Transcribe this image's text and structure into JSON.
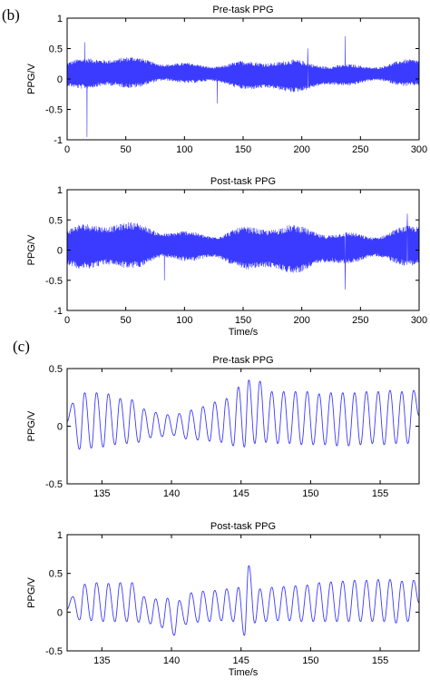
{
  "panel_labels": {
    "b": "(b)",
    "c": "(c)"
  },
  "colors": {
    "trace": "#3b3bff",
    "axes": "#000000"
  },
  "chart_data": [
    {
      "type": "line",
      "panel": "b",
      "title": "Pre-task PPG",
      "xlabel": "",
      "ylabel": "PPG/V",
      "xlim": [
        0,
        300
      ],
      "ylim": [
        -1,
        1
      ],
      "xticks": [
        "0",
        "50",
        "100",
        "150",
        "200",
        "250",
        "300"
      ],
      "yticks": [
        "-1",
        "-0.5",
        "0",
        "0.5",
        "1"
      ],
      "signal": {
        "kind": "dense_ppg",
        "center": 0.08,
        "amplitude": 0.2,
        "spikes": [
          [
            17,
            -0.95
          ],
          [
            15,
            0.6
          ],
          [
            128,
            -0.4
          ],
          [
            205,
            0.5
          ],
          [
            237,
            0.7
          ]
        ]
      },
      "grid": false,
      "legend": "none"
    },
    {
      "type": "line",
      "panel": "b",
      "title": "Post-task PPG",
      "xlabel": "Time/s",
      "ylabel": "PPG/V",
      "xlim": [
        0,
        300
      ],
      "ylim": [
        -1,
        1
      ],
      "xticks": [
        "0",
        "50",
        "100",
        "150",
        "200",
        "250",
        "300"
      ],
      "yticks": [
        "-1",
        "-0.5",
        "0",
        "0.5",
        "1"
      ],
      "signal": {
        "kind": "dense_ppg",
        "center": 0.05,
        "amplitude": 0.3,
        "spikes": [
          [
            83,
            -0.5
          ],
          [
            237,
            -0.65
          ],
          [
            290,
            0.6
          ]
        ]
      },
      "grid": false,
      "legend": "none"
    },
    {
      "type": "line",
      "panel": "c",
      "title": "Pre-task PPG",
      "xlabel": "",
      "ylabel": "PPG/V",
      "xlim": [
        132.5,
        157.8
      ],
      "ylim": [
        -0.5,
        0.5
      ],
      "xticks": [
        "135",
        "140",
        "145",
        "150",
        "155"
      ],
      "yticks": [
        "-0.5",
        "0",
        "0.5"
      ],
      "peaks": [
        [
          132.9,
          0.2
        ],
        [
          133.75,
          0.29
        ],
        [
          134.6,
          0.29
        ],
        [
          135.45,
          0.28
        ],
        [
          136.3,
          0.24
        ],
        [
          137.15,
          0.23
        ],
        [
          138.0,
          0.15
        ],
        [
          138.85,
          0.12
        ],
        [
          139.7,
          0.1
        ],
        [
          140.55,
          0.11
        ],
        [
          141.4,
          0.14
        ],
        [
          142.25,
          0.17
        ],
        [
          143.1,
          0.21
        ],
        [
          143.95,
          0.24
        ],
        [
          144.8,
          0.34
        ],
        [
          145.55,
          0.4
        ],
        [
          146.35,
          0.39
        ],
        [
          147.2,
          0.3
        ],
        [
          148.05,
          0.3
        ],
        [
          148.9,
          0.3
        ],
        [
          149.75,
          0.3
        ],
        [
          150.6,
          0.28
        ],
        [
          151.45,
          0.29
        ],
        [
          152.3,
          0.29
        ],
        [
          153.15,
          0.29
        ],
        [
          154.0,
          0.3
        ],
        [
          154.85,
          0.3
        ],
        [
          155.7,
          0.31
        ],
        [
          156.55,
          0.3
        ],
        [
          157.4,
          0.31
        ]
      ],
      "troughs": [
        [
          133.4,
          -0.2
        ],
        [
          134.25,
          -0.19
        ],
        [
          135.1,
          -0.18
        ],
        [
          135.95,
          -0.16
        ],
        [
          136.8,
          -0.15
        ],
        [
          137.65,
          -0.14
        ],
        [
          138.5,
          -0.1
        ],
        [
          139.35,
          -0.09
        ],
        [
          140.2,
          -0.08
        ],
        [
          141.05,
          -0.11
        ],
        [
          141.9,
          -0.12
        ],
        [
          142.75,
          -0.13
        ],
        [
          143.6,
          -0.14
        ],
        [
          144.45,
          -0.17
        ],
        [
          145.25,
          -0.18
        ],
        [
          146.0,
          -0.15
        ],
        [
          146.8,
          -0.14
        ],
        [
          147.65,
          -0.15
        ],
        [
          148.5,
          -0.15
        ],
        [
          149.35,
          -0.16
        ],
        [
          150.2,
          -0.16
        ],
        [
          151.05,
          -0.16
        ],
        [
          151.9,
          -0.17
        ],
        [
          152.75,
          -0.17
        ],
        [
          153.6,
          -0.16
        ],
        [
          154.45,
          -0.15
        ],
        [
          155.3,
          -0.16
        ],
        [
          156.15,
          -0.15
        ],
        [
          157.0,
          -0.15
        ]
      ],
      "grid": false,
      "legend": "none"
    },
    {
      "type": "line",
      "panel": "c",
      "title": "Post-task PPG",
      "xlabel": "Time/s",
      "ylabel": "PPG/V",
      "xlim": [
        132.5,
        157.8
      ],
      "ylim": [
        -0.5,
        1
      ],
      "xticks": [
        "135",
        "140",
        "145",
        "150",
        "155"
      ],
      "yticks": [
        "-0.5",
        "0",
        "0.5",
        "1"
      ],
      "peaks": [
        [
          132.9,
          0.2
        ],
        [
          133.75,
          0.36
        ],
        [
          134.6,
          0.38
        ],
        [
          135.45,
          0.37
        ],
        [
          136.3,
          0.38
        ],
        [
          137.15,
          0.38
        ],
        [
          138.0,
          0.2
        ],
        [
          138.85,
          0.17
        ],
        [
          139.7,
          0.18
        ],
        [
          140.55,
          0.15
        ],
        [
          141.4,
          0.25
        ],
        [
          142.25,
          0.27
        ],
        [
          143.1,
          0.28
        ],
        [
          143.95,
          0.3
        ],
        [
          144.8,
          0.32
        ],
        [
          145.55,
          0.6
        ],
        [
          146.35,
          0.3
        ],
        [
          147.2,
          0.32
        ],
        [
          148.05,
          0.33
        ],
        [
          148.9,
          0.34
        ],
        [
          149.75,
          0.35
        ],
        [
          150.6,
          0.38
        ],
        [
          151.45,
          0.39
        ],
        [
          152.3,
          0.4
        ],
        [
          153.15,
          0.41
        ],
        [
          154.0,
          0.41
        ],
        [
          154.85,
          0.42
        ],
        [
          155.7,
          0.42
        ],
        [
          156.55,
          0.4
        ],
        [
          157.4,
          0.41
        ]
      ],
      "troughs": [
        [
          133.4,
          -0.1
        ],
        [
          134.25,
          -0.11
        ],
        [
          135.1,
          -0.12
        ],
        [
          135.95,
          -0.12
        ],
        [
          136.8,
          -0.12
        ],
        [
          137.65,
          -0.13
        ],
        [
          138.5,
          -0.15
        ],
        [
          139.35,
          -0.2
        ],
        [
          140.2,
          -0.3
        ],
        [
          141.05,
          -0.16
        ],
        [
          141.9,
          -0.13
        ],
        [
          142.75,
          -0.12
        ],
        [
          143.6,
          -0.11
        ],
        [
          144.45,
          -0.12
        ],
        [
          145.25,
          -0.3
        ],
        [
          146.0,
          -0.14
        ],
        [
          146.8,
          -0.12
        ],
        [
          147.65,
          -0.11
        ],
        [
          148.5,
          -0.11
        ],
        [
          149.35,
          -0.12
        ],
        [
          150.2,
          -0.12
        ],
        [
          151.05,
          -0.12
        ],
        [
          151.9,
          -0.12
        ],
        [
          152.75,
          -0.12
        ],
        [
          153.6,
          -0.12
        ],
        [
          154.45,
          -0.12
        ],
        [
          155.3,
          -0.12
        ],
        [
          156.15,
          -0.14
        ],
        [
          157.0,
          -0.12
        ]
      ],
      "grid": false,
      "legend": "none"
    }
  ]
}
